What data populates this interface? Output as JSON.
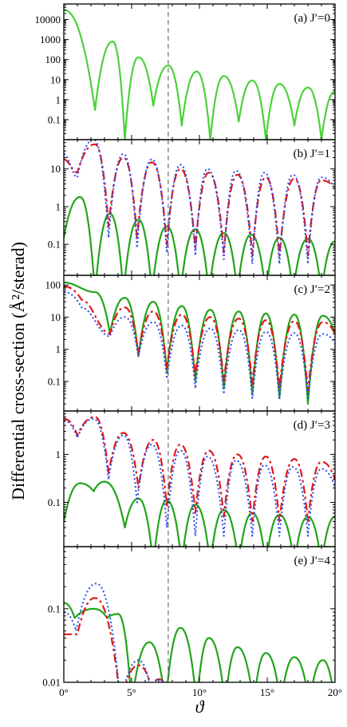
{
  "chart_data": {
    "type": "line",
    "ylabel": "Differential cross-section (Å²/sterad)",
    "xlabel": "ϑ",
    "xlim": [
      0,
      20
    ],
    "x_ticks": [
      0,
      5,
      10,
      15,
      20
    ],
    "x_tick_labels": [
      "0°",
      "5°",
      "10°",
      "15°",
      "20°"
    ],
    "y_scale": "log",
    "reference_line": {
      "x": 7.7,
      "style": "dashed"
    },
    "colors": {
      "green": "#22a41a",
      "red": "#e01818",
      "blue": "#2a4bf0",
      "light_green": "#4cd13a"
    },
    "panels": [
      {
        "label": "(a) J′=0",
        "ylim": [
          0.01,
          60000
        ],
        "y_tick_labels": [
          "0.1",
          "1",
          "10",
          "100",
          "1000",
          "10000"
        ],
        "series": [
          {
            "color": "#4cd13a",
            "style": "solid",
            "peaks_x": [
              0,
              3.6,
              5.5,
              7.7,
              9.8,
              11.8,
              13.9,
              15.9,
              18.0,
              20.0
            ],
            "peaks_y": [
              30000,
              800,
              130,
              50,
              25,
              15,
              9,
              6,
              4,
              2.5
            ],
            "minima_x": [
              2.3,
              4.5,
              6.6,
              8.7,
              10.8,
              12.9,
              14.9,
              17.0,
              19.0
            ],
            "minima_y": [
              0.3,
              0.01,
              0.5,
              0.05,
              0.01,
              0.08,
              0.01,
              0.05,
              0.01
            ]
          }
        ]
      },
      {
        "label": "(b) J′=1",
        "ylim": [
          0.015,
          60
        ],
        "y_tick_labels": [
          "0.1",
          "1",
          "10"
        ],
        "series": [
          {
            "color": "#22a41a",
            "style": "solid",
            "peaks_x": [
              1.2,
              3.4,
              5.5,
              7.6,
              9.7,
              11.8,
              13.8,
              15.9,
              18.0,
              20.0
            ],
            "peaks_y": [
              1.8,
              0.65,
              0.45,
              0.3,
              0.25,
              0.2,
              0.18,
              0.15,
              0.14,
              0.12
            ],
            "minima_x": [
              0,
              2.3,
              4.4,
              6.5,
              8.6,
              10.7,
              12.8,
              14.9,
              16.9,
              19.0
            ],
            "minima_y": [
              0.15,
              0.005,
              0.005,
              0.005,
              0.005,
              0.005,
              0.005,
              0.005,
              0.005,
              0.005
            ]
          },
          {
            "color": "#e01818",
            "style": "dashed",
            "peaks_x": [
              2.3,
              4.4,
              6.5,
              8.6,
              10.7,
              12.8,
              14.9,
              17.0,
              19.0
            ],
            "peaks_y": [
              45,
              20,
              15,
              10,
              8,
              7,
              6,
              5.5,
              5
            ],
            "minima_x": [
              0,
              1.0,
              3.3,
              5.4,
              7.6,
              9.7,
              11.8,
              13.9,
              15.9,
              18.0,
              20.0
            ],
            "minima_y": [
              18,
              8,
              0.3,
              0.15,
              0.1,
              0.08,
              0.06,
              0.05,
              0.05,
              0.05,
              3
            ]
          },
          {
            "color": "#2a4bf0",
            "style": "dotted",
            "peaks_x": [
              2.2,
              4.4,
              6.5,
              8.6,
              10.6,
              12.7,
              14.8,
              16.9,
              19.0
            ],
            "peaks_y": [
              60,
              25,
              18,
              13,
              10,
              9,
              8,
              7,
              6
            ],
            "minima_x": [
              0,
              1.0,
              3.3,
              5.4,
              7.6,
              9.7,
              11.8,
              13.9,
              15.9,
              18.0,
              20.0
            ],
            "minima_y": [
              25,
              6,
              0.15,
              0.08,
              0.06,
              0.05,
              0.04,
              0.03,
              0.03,
              0.03,
              3
            ]
          }
        ]
      },
      {
        "label": "(c) J′=2",
        "ylim": [
          0.012,
          200
        ],
        "y_tick_labels": [
          "0.1",
          "1",
          "10",
          "100"
        ],
        "series": [
          {
            "color": "#22a41a",
            "style": "solid",
            "peaks_x": [
              0,
              2.3,
              4.5,
              6.6,
              8.7,
              10.8,
              12.9,
              14.9,
              17.0,
              19.1
            ],
            "peaks_y": [
              120,
              60,
              40,
              30,
              22,
              17,
              15,
              13,
              12,
              11
            ],
            "minima_x": [
              3.4,
              5.5,
              7.6,
              9.7,
              11.8,
              13.9,
              15.9,
              18.0,
              20.0
            ],
            "minima_y": [
              3,
              0.6,
              0.2,
              0.1,
              0.06,
              0.04,
              0.03,
              0.02,
              3
            ]
          },
          {
            "color": "#e01818",
            "style": "dashed",
            "peaks_x": [
              0,
              4.5,
              6.6,
              8.7,
              10.8,
              12.9,
              14.9,
              17.0,
              19.1
            ],
            "peaks_y": [
              90,
              20,
              15,
              12,
              10,
              9,
              8,
              7.5,
              7
            ],
            "minima_x": [
              1.3,
              3.4,
              5.5,
              7.6,
              9.7,
              11.8,
              13.9,
              15.9,
              18.0,
              20.0
            ],
            "minima_y": [
              35,
              3,
              0.7,
              0.25,
              0.15,
              0.1,
              0.08,
              0.06,
              0.05,
              3
            ]
          },
          {
            "color": "#2a4bf0",
            "style": "dotted",
            "peaks_x": [
              0,
              4.5,
              6.6,
              8.7,
              10.8,
              12.9,
              14.9,
              17.0,
              19.1
            ],
            "peaks_y": [
              60,
              10,
              7,
              5.5,
              4.5,
              4,
              3.5,
              3.2,
              3
            ],
            "minima_x": [
              1.3,
              3.4,
              5.5,
              7.6,
              9.7,
              11.8,
              13.9,
              15.9,
              18.0,
              20.0
            ],
            "minima_y": [
              20,
              2.5,
              0.6,
              0.12,
              0.06,
              0.04,
              0.03,
              0.03,
              0.03,
              1.5
            ]
          }
        ]
      },
      {
        "label": "(d) J′=3",
        "ylim": [
          0.012,
          8
        ],
        "y_tick_labels": [
          "0.1",
          "1"
        ],
        "series": [
          {
            "color": "#22a41a",
            "style": "solid",
            "peaks_x": [
              1.2,
              3.0,
              5.5,
              7.6,
              9.7,
              11.8,
              13.9,
              15.9,
              18.0,
              20.0
            ],
            "peaks_y": [
              0.25,
              0.27,
              0.12,
              0.11,
              0.09,
              0.07,
              0.06,
              0.055,
              0.05,
              0.05
            ],
            "minima_x": [
              0,
              2.2,
              4.5,
              6.6,
              8.7,
              10.8,
              12.9,
              14.9,
              17.0,
              19.0
            ],
            "minima_y": [
              0.04,
              0.17,
              0.03,
              0.005,
              0.005,
              0.005,
              0.005,
              0.005,
              0.005,
              0.005
            ]
          },
          {
            "color": "#e01818",
            "style": "dashed",
            "peaks_x": [
              0,
              2.3,
              4.4,
              6.6,
              8.6,
              10.7,
              12.8,
              14.9,
              17.0,
              19.0
            ],
            "peaks_y": [
              5.5,
              6,
              2.8,
              2,
              1.6,
              1.2,
              1,
              0.9,
              0.8,
              0.7
            ],
            "minima_x": [
              1.0,
              3.3,
              5.5,
              7.6,
              9.7,
              11.8,
              13.9,
              15.9,
              18.0,
              20.0
            ],
            "minima_y": [
              2.5,
              0.4,
              0.2,
              0.08,
              0.06,
              0.05,
              0.04,
              0.04,
              0.04,
              0.3
            ]
          },
          {
            "color": "#2a4bf0",
            "style": "dotted",
            "peaks_x": [
              0,
              2.2,
              4.4,
              6.5,
              8.6,
              10.6,
              12.7,
              14.8,
              16.9,
              19.0
            ],
            "peaks_y": [
              5,
              5.5,
              2.5,
              1.6,
              1.2,
              0.9,
              0.75,
              0.6,
              0.55,
              0.5
            ],
            "minima_x": [
              1.0,
              3.3,
              5.4,
              7.6,
              9.7,
              11.8,
              13.9,
              15.9,
              18.0,
              20.0
            ],
            "minima_y": [
              2.2,
              0.3,
              0.1,
              0.03,
              0.02,
              0.02,
              0.02,
              0.02,
              0.02,
              0.2
            ]
          }
        ]
      },
      {
        "label": "(e) J′=4",
        "ylim": [
          0.01,
          0.7
        ],
        "y_tick_labels": [
          "0.01",
          "0.1"
        ],
        "series": [
          {
            "color": "#22a41a",
            "style": "solid",
            "peaks_x": [
              0,
              2.2,
              4.0,
              6.3,
              8.6,
              10.7,
              12.8,
              14.9,
              17.0,
              19.1
            ],
            "peaks_y": [
              0.12,
              0.1,
              0.085,
              0.035,
              0.055,
              0.04,
              0.03,
              0.025,
              0.022,
              0.02
            ],
            "minima_x": [
              0.8,
              3.2,
              5.0,
              7.5,
              9.8,
              11.9,
              14.0,
              16.0,
              18.1,
              20.0
            ],
            "minima_y": [
              0.075,
              0.075,
              0.005,
              0.005,
              0.005,
              0.005,
              0.005,
              0.005,
              0.005,
              0.005
            ]
          },
          {
            "color": "#e01818",
            "style": "dashed",
            "peaks_x": [
              0,
              2.3,
              5.5,
              7.0
            ],
            "peaks_y": [
              0.045,
              0.14,
              0.017,
              0.011
            ],
            "minima_x": [
              1.0,
              4.2,
              6.5,
              8.0
            ],
            "minima_y": [
              0.045,
              0.005,
              0.008,
              0.005
            ]
          },
          {
            "color": "#2a4bf0",
            "style": "dotted",
            "peaks_x": [
              0,
              2.4,
              5.5,
              7.0
            ],
            "peaks_y": [
              0.09,
              0.22,
              0.02,
              0.011
            ],
            "minima_x": [
              0.9,
              4.2,
              6.4,
              8.0
            ],
            "minima_y": [
              0.05,
              0.005,
              0.008,
              0.005
            ]
          }
        ]
      }
    ]
  }
}
